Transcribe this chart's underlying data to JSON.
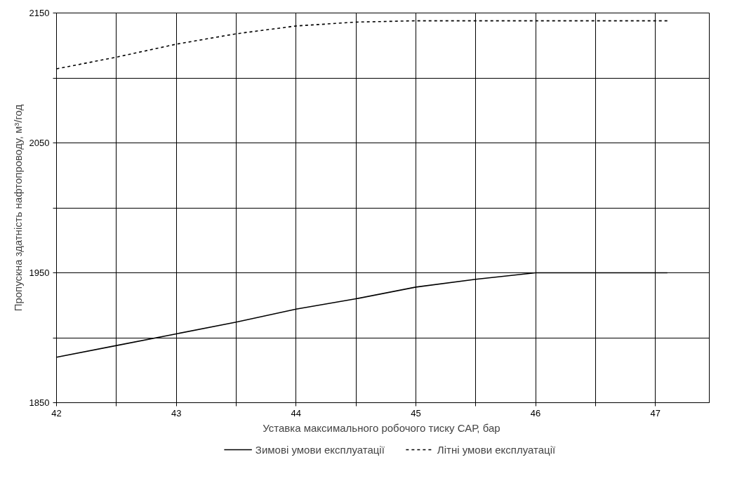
{
  "chart_data": {
    "type": "line",
    "xlabel": "Уставка максимального робочого тиску САР,  бар",
    "ylabel": "Пропускна здатність нафтопроводу, м³/год",
    "xlim": [
      42,
      47.45
    ],
    "ylim": [
      1850,
      2150
    ],
    "xticks": [
      42,
      {
        "value": 42.5,
        "label": null
      },
      43,
      {
        "value": 43.5,
        "label": null
      },
      44,
      {
        "value": 44.5,
        "label": null
      },
      45,
      {
        "value": 45.5,
        "label": null
      },
      46,
      {
        "value": 46.5,
        "label": null
      },
      47
    ],
    "yticks": [
      1850,
      {
        "value": 1900,
        "label": null
      },
      1950,
      {
        "value": 2000,
        "label": null
      },
      2050,
      {
        "value": 2100,
        "label": null
      },
      2150
    ],
    "grid": true,
    "legend": "bottom",
    "series": [
      {
        "name": "Зимові умови експлуатації",
        "color": "#000000",
        "line_style": "solid",
        "x": [
          42,
          42.5,
          43,
          43.5,
          44,
          44.5,
          45,
          45.5,
          46,
          46.5,
          47.1
        ],
        "values": [
          1885,
          1894,
          1903,
          1912,
          1922,
          1930,
          1939,
          1945,
          1950,
          1950,
          1950
        ]
      },
      {
        "name": "Літні умови експлуатації",
        "color": "#000000",
        "line_style": "dashed",
        "x": [
          42,
          42.5,
          43,
          43.5,
          44,
          44.5,
          45,
          45.5,
          46,
          46.5,
          47.1
        ],
        "values": [
          2107,
          2116,
          2126,
          2134,
          2140,
          2143,
          2144,
          2144,
          2144,
          2144,
          2144
        ]
      }
    ]
  }
}
